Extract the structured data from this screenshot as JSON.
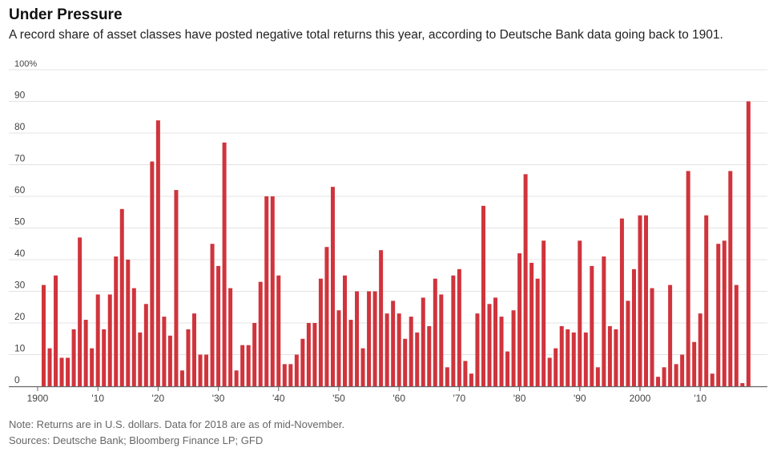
{
  "header": {
    "title": "Under Pressure",
    "subtitle": "A record share of asset classes have posted negative total returns this year, according to Deutsche Bank data going back to 1901."
  },
  "footer": {
    "note": "Note: Returns are in U.S. dollars. Data for 2018 are as of mid-November.",
    "sources": "Sources: Deutsche Bank; Bloomberg Finance LP; GFD"
  },
  "colors": {
    "bar": "#d0343c",
    "grid": "#e3e3e3",
    "axis": "#666666",
    "tick_text": "#444444"
  },
  "chart_data": {
    "type": "bar",
    "title": "Under Pressure",
    "xlabel": "",
    "ylabel": "",
    "ylim": [
      0,
      100
    ],
    "grid": true,
    "y_ticks": [
      0,
      10,
      20,
      30,
      40,
      50,
      60,
      70,
      80,
      90,
      100
    ],
    "y_tick_labels": [
      "0",
      "10",
      "20",
      "30",
      "40",
      "50",
      "60",
      "70",
      "80",
      "90",
      "100%"
    ],
    "x_ticks": [
      1900,
      1910,
      1920,
      1930,
      1940,
      1950,
      1960,
      1970,
      1980,
      1990,
      2000,
      2010
    ],
    "x_tick_labels": [
      "1900",
      "'10",
      "'20",
      "'30",
      "'40",
      "'50",
      "'60",
      "'70",
      "'80",
      "'90",
      "2000",
      "'10"
    ],
    "start_year": 1901,
    "values": [
      32,
      12,
      35,
      9,
      9,
      18,
      47,
      21,
      12,
      29,
      18,
      29,
      41,
      56,
      40,
      31,
      17,
      26,
      71,
      84,
      22,
      16,
      62,
      5,
      18,
      23,
      10,
      10,
      45,
      38,
      77,
      31,
      5,
      13,
      13,
      20,
      33,
      60,
      60,
      35,
      7,
      7,
      10,
      15,
      20,
      20,
      34,
      44,
      63,
      24,
      35,
      21,
      30,
      12,
      30,
      30,
      43,
      23,
      27,
      23,
      15,
      22,
      17,
      28,
      19,
      34,
      29,
      6,
      35,
      37,
      8,
      4,
      23,
      57,
      26,
      28,
      22,
      11,
      24,
      42,
      67,
      39,
      34,
      46,
      9,
      12,
      19,
      18,
      17,
      46,
      17,
      38,
      6,
      41,
      19,
      18,
      53,
      27,
      37,
      54,
      54,
      31,
      3,
      6,
      32,
      7,
      10,
      68,
      14,
      23,
      54,
      4,
      45,
      46,
      68,
      32,
      1,
      90
    ]
  }
}
